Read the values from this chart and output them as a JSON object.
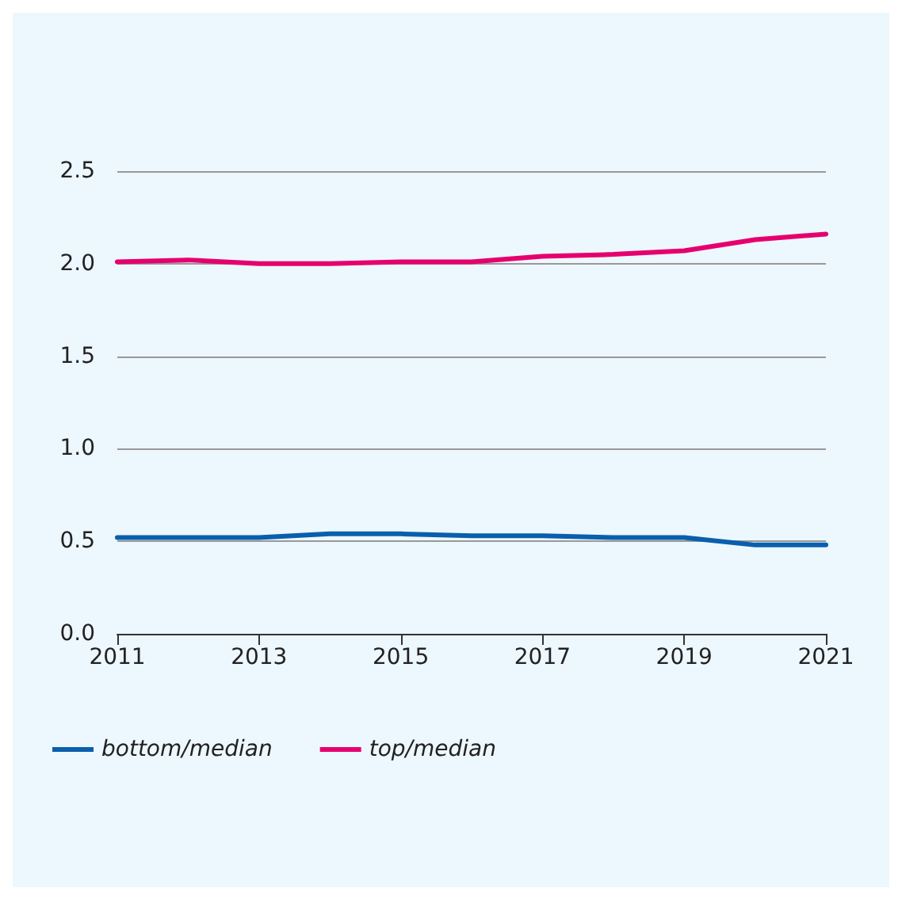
{
  "chart_data": {
    "type": "line",
    "x": [
      2011,
      2012,
      2013,
      2014,
      2015,
      2016,
      2017,
      2018,
      2019,
      2020,
      2021
    ],
    "series": [
      {
        "name": "bottom/median",
        "color": "#0a5fad",
        "values": [
          0.52,
          0.52,
          0.52,
          0.54,
          0.54,
          0.53,
          0.53,
          0.52,
          0.52,
          0.48,
          0.48
        ]
      },
      {
        "name": "top/median",
        "color": "#e6006f",
        "values": [
          2.01,
          2.02,
          2.0,
          2.0,
          2.01,
          2.01,
          2.04,
          2.05,
          2.07,
          2.13,
          2.16
        ]
      }
    ],
    "xlim": [
      2011,
      2021
    ],
    "xticks": [
      2011,
      2013,
      2015,
      2017,
      2019,
      2021
    ],
    "ylim": [
      0,
      2.5
    ],
    "yticks": [
      {
        "value": 0,
        "label": "0.0"
      },
      {
        "value": 0.5,
        "label": "0.5"
      },
      {
        "value": 1,
        "label": "1.0"
      },
      {
        "value": 1.5,
        "label": "1.5"
      },
      {
        "value": 2,
        "label": "2.0"
      },
      {
        "value": 2.5,
        "label": "2.5"
      }
    ],
    "grid": "y",
    "legend": "bottom left",
    "marker": "none",
    "line_style": "solid"
  }
}
